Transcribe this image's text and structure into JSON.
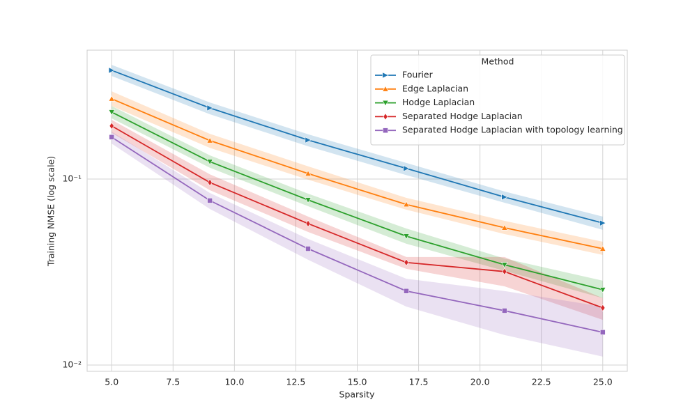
{
  "chart_data": {
    "type": "line",
    "x_label": "Sparsity",
    "y_label": "Training NMSE (log scale)",
    "log_y": true,
    "grid": true,
    "legend_title": "Method",
    "legend_loc": "upper right",
    "xlim": [
      4,
      26
    ],
    "ylim": [
      0.00925,
      0.493
    ],
    "xticks": [
      {
        "value": 5,
        "label": "5.0"
      },
      {
        "value": 7.5,
        "label": "7.5"
      },
      {
        "value": 10,
        "label": "10.0"
      },
      {
        "value": 12.5,
        "label": "12.5"
      },
      {
        "value": 15,
        "label": "15.0"
      },
      {
        "value": 17.5,
        "label": "17.5"
      },
      {
        "value": 20,
        "label": "20.0"
      },
      {
        "value": 22.5,
        "label": "22.5"
      },
      {
        "value": 25,
        "label": "25.0"
      }
    ],
    "yticks": [
      {
        "value": 0.1,
        "label": "10⁻¹"
      },
      {
        "value": 0.01,
        "label": "10⁻²"
      }
    ],
    "x": [
      5,
      9,
      13,
      17,
      21,
      25
    ],
    "series": [
      {
        "name": "Fourier",
        "color": "#1f77b4",
        "marker": "triangle-right",
        "values": [
          0.384,
          0.241,
          0.162,
          0.114,
          0.08,
          0.058
        ],
        "upper": [
          0.411,
          0.258,
          0.174,
          0.122,
          0.0857,
          0.0628
        ],
        "lower": [
          0.358,
          0.223,
          0.15,
          0.105,
          0.0746,
          0.0533
        ]
      },
      {
        "name": "Edge Laplacian",
        "color": "#ff7f0e",
        "marker": "triangle-up",
        "values": [
          0.27,
          0.161,
          0.107,
          0.073,
          0.0547,
          0.0422
        ],
        "upper": [
          0.296,
          0.175,
          0.117,
          0.0792,
          0.0596,
          0.046
        ],
        "lower": [
          0.247,
          0.147,
          0.0992,
          0.0684,
          0.0506,
          0.0391
        ]
      },
      {
        "name": "Hodge Laplacian",
        "color": "#2ca02c",
        "marker": "triangle-down",
        "values": [
          0.229,
          0.124,
          0.0772,
          0.0493,
          0.0346,
          0.0254
        ],
        "upper": [
          0.247,
          0.134,
          0.0834,
          0.0542,
          0.0374,
          0.0284
        ],
        "lower": [
          0.212,
          0.115,
          0.0714,
          0.0449,
          0.0321,
          0.0229
        ]
      },
      {
        "name": "Separated Hodge Laplacian",
        "color": "#d62728",
        "marker": "diamond",
        "values": [
          0.193,
          0.0958,
          0.0576,
          0.0356,
          0.0318,
          0.0203
        ],
        "upper": [
          0.208,
          0.106,
          0.0628,
          0.0381,
          0.0381,
          0.0229
        ],
        "lower": [
          0.177,
          0.0871,
          0.0519,
          0.0329,
          0.0265,
          0.0175
        ]
      },
      {
        "name": "Separated Hodge Laplacian with topology learning",
        "color": "#9467bd",
        "marker": "square",
        "values": [
          0.168,
          0.0766,
          0.0422,
          0.025,
          0.0196,
          0.015
        ],
        "upper": [
          0.18,
          0.0841,
          0.0476,
          0.0291,
          0.025,
          0.0206
        ],
        "lower": [
          0.155,
          0.069,
          0.0368,
          0.0206,
          0.0145,
          0.0111
        ]
      }
    ]
  }
}
